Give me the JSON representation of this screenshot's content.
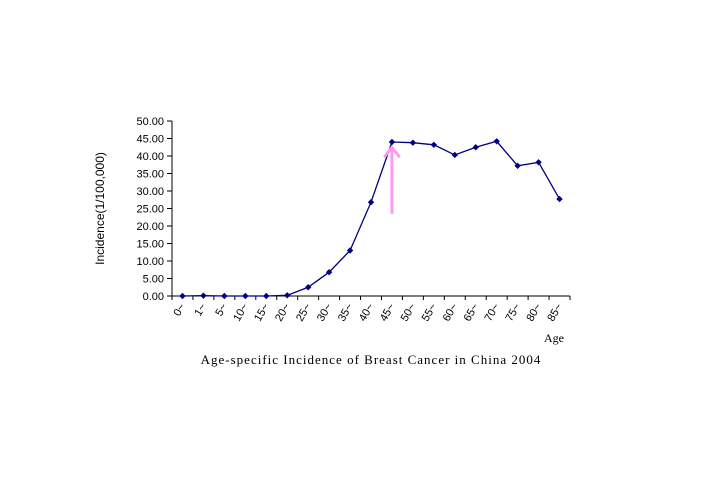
{
  "chart_data": {
    "type": "line",
    "title": "Age-specific Incidence of Breast Cancer in China 2004",
    "xlabel": "Age",
    "ylabel": "Incidence(1/100,000)",
    "categories": [
      "0~",
      "1~",
      "5~",
      "10~",
      "15~",
      "20~",
      "25~",
      "30~",
      "35~",
      "40~",
      "45~",
      "50~",
      "55~",
      "60~",
      "65~",
      "70~",
      "75~",
      "80~",
      "85~"
    ],
    "ylim": [
      0,
      50
    ],
    "yticks": [
      "0.00",
      "5.00",
      "10.00",
      "15.00",
      "20.00",
      "25.00",
      "30.00",
      "35.00",
      "40.00",
      "45.00",
      "50.00"
    ],
    "series": [
      {
        "values": [
          0.0,
          0.1,
          0.0,
          0.0,
          0.0,
          0.2,
          2.5,
          6.8,
          13.0,
          26.8,
          44.0,
          43.8,
          43.2,
          40.3,
          42.5,
          44.2,
          37.2,
          38.2,
          27.7
        ],
        "color": "#000080"
      }
    ],
    "annotations": [
      {
        "type": "arrow",
        "at_category": "45~",
        "color": "#ff99ee",
        "from_value": 23.5,
        "to_value": 42.5
      }
    ],
    "grid": false,
    "legend": "none"
  }
}
